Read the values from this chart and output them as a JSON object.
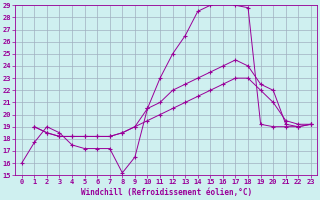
{
  "xlabel": "Windchill (Refroidissement éolien,°C)",
  "bg_color": "#cff0f0",
  "grid_color": "#a0b0c0",
  "line_color": "#990099",
  "xlim": [
    -0.5,
    23.5
  ],
  "ylim": [
    15,
    29
  ],
  "xticks": [
    0,
    1,
    2,
    3,
    4,
    5,
    6,
    7,
    8,
    9,
    10,
    11,
    12,
    13,
    14,
    15,
    16,
    17,
    18,
    19,
    20,
    21,
    22,
    23
  ],
  "yticks": [
    15,
    16,
    17,
    18,
    19,
    20,
    21,
    22,
    23,
    24,
    25,
    26,
    27,
    28,
    29
  ],
  "line1_x": [
    0,
    1,
    2,
    3,
    4,
    5,
    6,
    7,
    8,
    9,
    10,
    11,
    12,
    13,
    14,
    15,
    16,
    17,
    18,
    19,
    20,
    21,
    22,
    23
  ],
  "line1_y": [
    16.0,
    17.7,
    19.0,
    18.5,
    17.5,
    17.2,
    17.2,
    17.2,
    15.2,
    16.5,
    20.5,
    23.0,
    25.0,
    26.5,
    28.5,
    29.0,
    29.3,
    29.0,
    28.8,
    19.2,
    19.0,
    19.0,
    19.0,
    19.2
  ],
  "line2_x": [
    1,
    2,
    3,
    4,
    5,
    6,
    7,
    8,
    9,
    10,
    11,
    12,
    13,
    14,
    15,
    16,
    17,
    18,
    19,
    20,
    21,
    22,
    23
  ],
  "line2_y": [
    19.0,
    18.5,
    18.2,
    18.2,
    18.2,
    18.2,
    18.2,
    18.5,
    19.0,
    20.5,
    21.0,
    22.0,
    22.5,
    23.0,
    23.5,
    24.0,
    24.5,
    24.0,
    22.5,
    22.0,
    19.2,
    19.0,
    19.2
  ],
  "line3_x": [
    1,
    2,
    3,
    4,
    5,
    6,
    7,
    8,
    9,
    10,
    11,
    12,
    13,
    14,
    15,
    16,
    17,
    18,
    19,
    20,
    21,
    22,
    23
  ],
  "line3_y": [
    19.0,
    18.5,
    18.2,
    18.2,
    18.2,
    18.2,
    18.2,
    18.5,
    19.0,
    19.5,
    20.0,
    20.5,
    21.0,
    21.5,
    22.0,
    22.5,
    23.0,
    23.0,
    22.0,
    21.0,
    19.5,
    19.2,
    19.2
  ]
}
